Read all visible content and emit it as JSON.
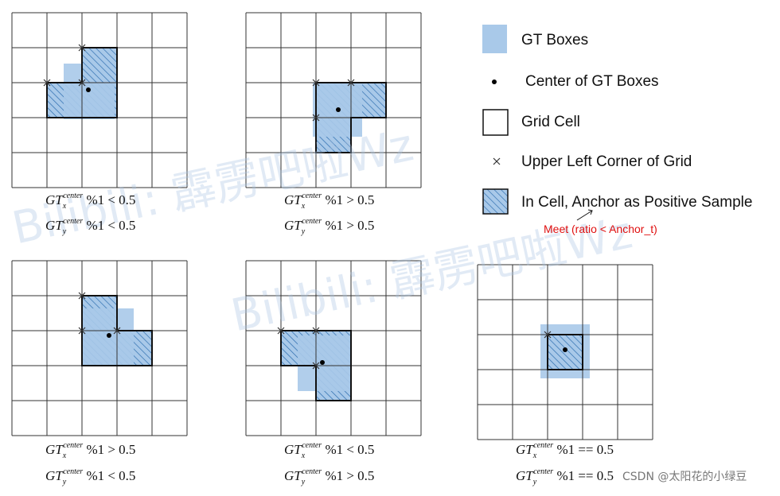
{
  "legend": {
    "gt_boxes": "GT Boxes",
    "center": "Center of GT Boxes",
    "grid_cell": "Grid Cell",
    "corner": "Upper Left Corner of Grid",
    "positive": "In Cell, Anchor as Positive Sample",
    "meet": "Meet (ratio < Anchor_t)"
  },
  "colors": {
    "gt_fill": "#a9c9e9",
    "hatch": "#2f6fb0",
    "grid": "#333333",
    "meet_text": "#e01010"
  },
  "panels": [
    {
      "id": "a",
      "gt_x": "GT",
      "sup_x": "center",
      "sub_x": "x",
      "op_x": "%1 < 0.5",
      "gt_y": "GT",
      "sup_y": "center",
      "sub_y": "y",
      "op_y": "%1 < 0.5"
    },
    {
      "id": "b",
      "gt_x": "GT",
      "sup_x": "center",
      "sub_x": "x",
      "op_x": "%1 > 0.5",
      "gt_y": "GT",
      "sup_y": "center",
      "sub_y": "y",
      "op_y": "%1 > 0.5"
    },
    {
      "id": "c",
      "gt_x": "GT",
      "sup_x": "center",
      "sub_x": "x",
      "op_x": "%1 > 0.5",
      "gt_y": "GT",
      "sup_y": "center",
      "sub_y": "y",
      "op_y": "%1 < 0.5"
    },
    {
      "id": "d",
      "gt_x": "GT",
      "sup_x": "center",
      "sub_x": "x",
      "op_x": "%1 < 0.5",
      "gt_y": "GT",
      "sup_y": "center",
      "sub_y": "y",
      "op_y": "%1 > 0.5"
    },
    {
      "id": "e",
      "gt_x": "GT",
      "sup_x": "center",
      "sub_x": "x",
      "op_x": "%1 == 0.5",
      "gt_y": "GT",
      "sup_y": "center",
      "sub_y": "y",
      "op_y": "%1 == 0.5"
    }
  ],
  "watermark": "Bilibili: 霹雳吧啦Wz",
  "csdn_credit": "CSDN @太阳花的小绿豆"
}
